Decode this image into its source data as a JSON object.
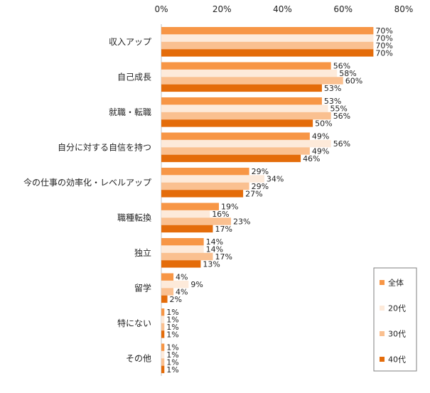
{
  "chart_data": {
    "type": "bar",
    "orientation": "horizontal",
    "title": "",
    "xlabel": "",
    "ylabel": "",
    "xlim": [
      0,
      80
    ],
    "x_ticks": [
      "0%",
      "20%",
      "40%",
      "60%",
      "80%"
    ],
    "value_suffix": "%",
    "grid": false,
    "legend_position": "bottom-right",
    "categories": [
      "収入アップ",
      "自己成長",
      "就職・転職",
      "自分に対する自信を持つ",
      "今の仕事の効率化・レベルアップ",
      "職種転換",
      "独立",
      "留学",
      "特にない",
      "その他"
    ],
    "series": [
      {
        "name": "全体",
        "color": "#F79646",
        "values": [
          70,
          56,
          53,
          49,
          29,
          19,
          14,
          4,
          1,
          1
        ]
      },
      {
        "name": "20代",
        "color": "#FDEADA",
        "values": [
          70,
          58,
          55,
          56,
          34,
          16,
          14,
          9,
          1,
          1
        ]
      },
      {
        "name": "30代",
        "color": "#FAC090",
        "values": [
          70,
          60,
          56,
          49,
          29,
          23,
          17,
          4,
          1,
          1
        ]
      },
      {
        "name": "40代",
        "color": "#E46C0A",
        "values": [
          70,
          53,
          50,
          46,
          27,
          17,
          13,
          2,
          1,
          1
        ]
      }
    ]
  }
}
